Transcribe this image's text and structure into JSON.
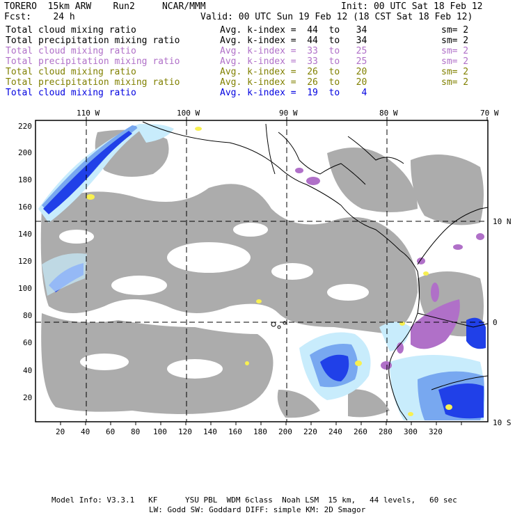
{
  "header": {
    "left_line1": "TORERO  15km ARW    Run2     NCAR/MMM",
    "left_line2": "Fcst:    24 h",
    "init": "Init: 00 UTC Sat 18 Feb 12",
    "valid": "Valid: 00 UTC Sun 19 Feb 12 (18 CST Sat 18 Feb 12)"
  },
  "legend": [
    {
      "field": "Total cloud mixing ratio",
      "kindex": "Avg. k-index =  44  to   34",
      "sm": "sm= 2",
      "color": "#000000"
    },
    {
      "field": "Total precipitation mixing ratio",
      "kindex": "Avg. k-index =  44  to   34",
      "sm": "sm= 2",
      "color": "#000000"
    },
    {
      "field": "Total cloud mixing ratio",
      "kindex": "Avg. k-index =  33  to   25",
      "sm": "sm= 2",
      "color": "#b070c8"
    },
    {
      "field": "Total precipitation mixing ratio",
      "kindex": "Avg. k-index =  33  to   25",
      "sm": "sm= 2",
      "color": "#b070c8"
    },
    {
      "field": "Total cloud mixing ratio",
      "kindex": "Avg. k-index =  26  to   20",
      "sm": "sm= 2",
      "color": "#808000"
    },
    {
      "field": "Total precipitation mixing ratio",
      "kindex": "Avg. k-index =  26  to   20",
      "sm": "sm= 2",
      "color": "#808000"
    },
    {
      "field": "Total cloud mixing ratio",
      "kindex": "Avg. k-index =  19  to    4",
      "sm": "",
      "color": "#0000e0"
    }
  ],
  "axes": {
    "top_lon": [
      "110 W",
      "100 W",
      "90 W",
      "80 W",
      "70 W"
    ],
    "right_lat": [
      "10 N",
      "0",
      "10 S"
    ],
    "x_ticks": [
      "20",
      "40",
      "60",
      "80",
      "100",
      "120",
      "140",
      "160",
      "180",
      "200",
      "220",
      "240",
      "260",
      "280",
      "300",
      "320"
    ],
    "y_ticks": [
      "220",
      "200",
      "180",
      "160",
      "140",
      "120",
      "100",
      "80",
      "60",
      "40",
      "20"
    ]
  },
  "footer": {
    "line1": "Model Info: V3.3.1   KF      YSU PBL  WDM 6class  Noah LSM  15 km,   44 levels,   60 sec",
    "line2": "LW: Godd SW: Goddard DIFF: simple KM: 2D Smagor"
  },
  "colors": {
    "cloud_gray": "#a8a8a8",
    "light_blue": "#c8ecfc",
    "mid_blue": "#78a8f0",
    "dark_blue": "#2040e8",
    "purple": "#b070c8",
    "yellow": "#f8f050"
  }
}
